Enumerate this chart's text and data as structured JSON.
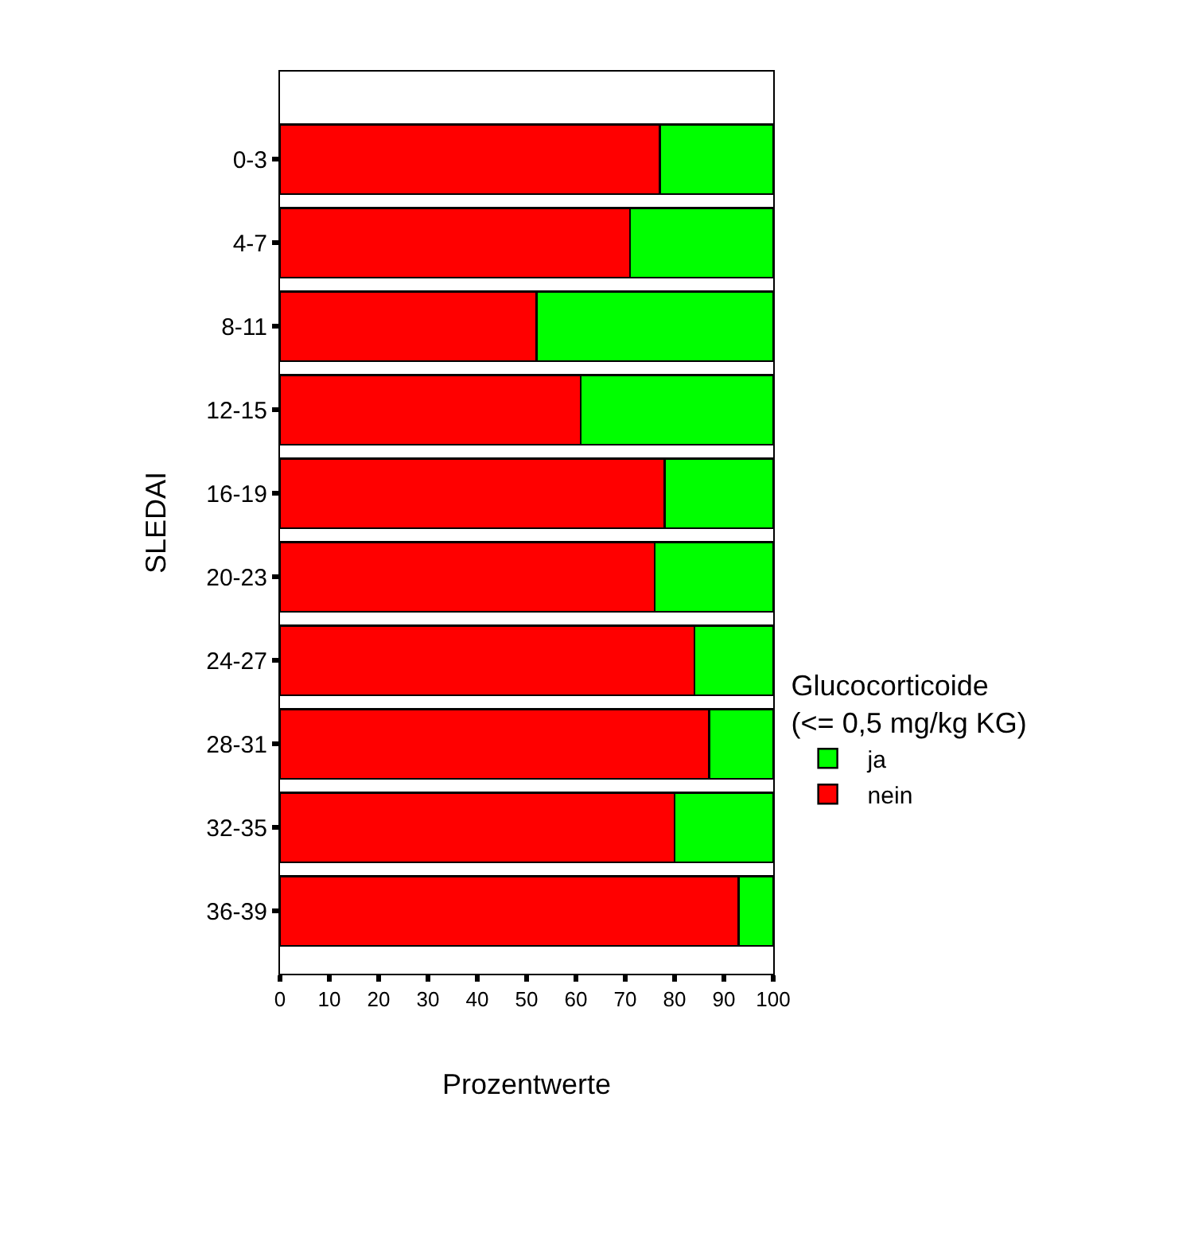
{
  "chart_data": {
    "type": "bar",
    "orientation": "horizontal",
    "stacked": true,
    "categories": [
      "0-3",
      "4-7",
      "8-11",
      "12-15",
      "16-19",
      "20-23",
      "24-27",
      "28-31",
      "32-35",
      "36-39"
    ],
    "series": [
      {
        "name": "nein",
        "color": "#ff0000",
        "values": [
          77,
          71,
          52,
          61,
          78,
          76,
          84,
          87,
          80,
          93
        ]
      },
      {
        "name": "ja",
        "color": "#00ff00",
        "values": [
          23,
          29,
          48,
          39,
          22,
          24,
          16,
          13,
          20,
          7
        ]
      }
    ],
    "xlim": [
      0,
      100
    ],
    "xticks": [
      0,
      10,
      20,
      30,
      40,
      50,
      60,
      70,
      80,
      90,
      100
    ],
    "xlabel": "Prozentwerte",
    "ylabel": "SLEDAI",
    "legend_title": "Glucocorticoide\n(<= 0,5 mg/kg KG)",
    "legend": "right",
    "grid": false
  }
}
